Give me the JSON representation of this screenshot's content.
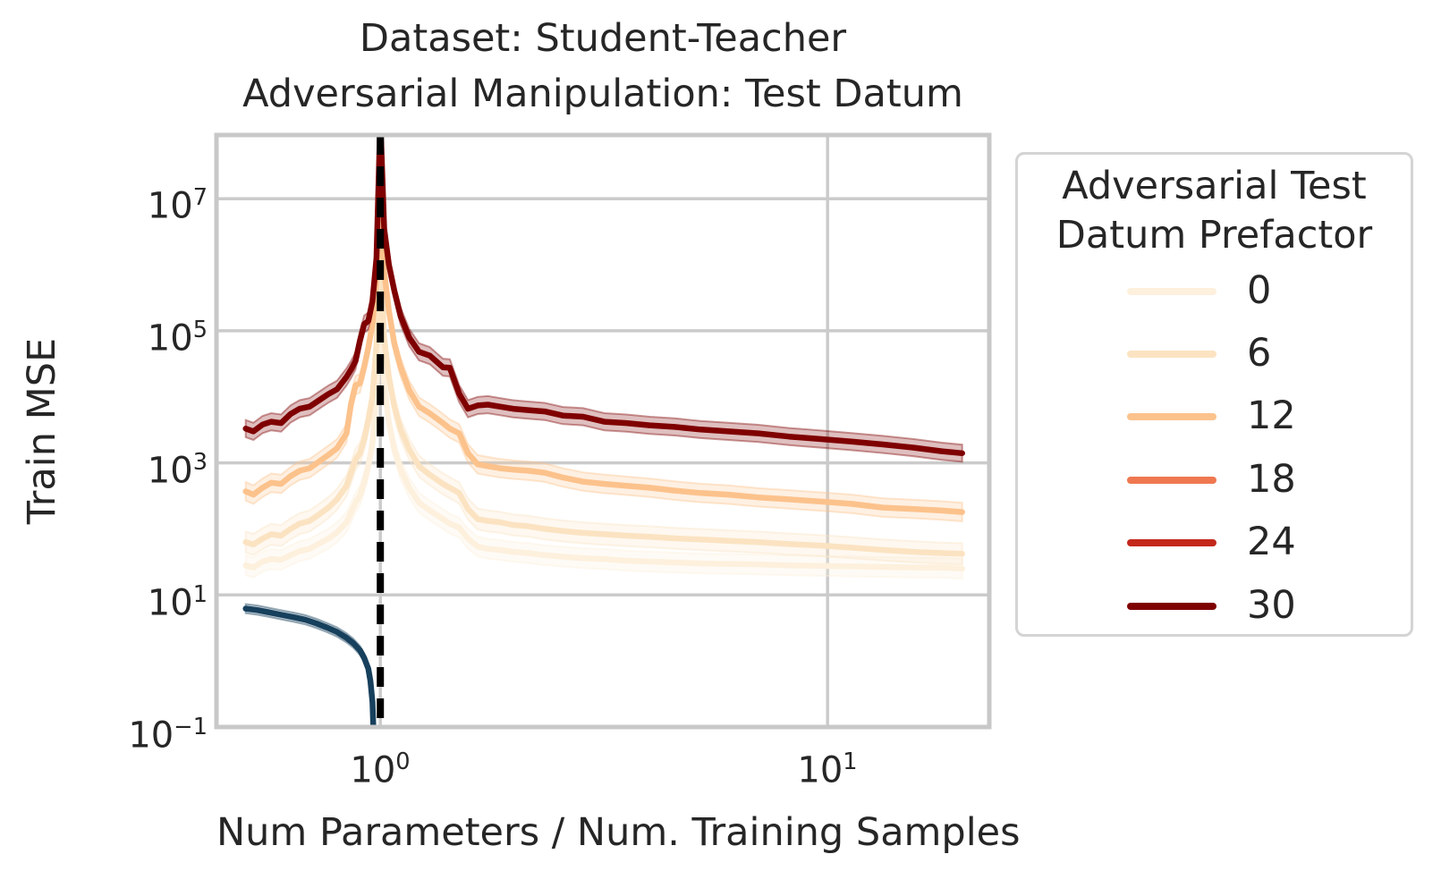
{
  "title": {
    "line1": "Dataset: Student-Teacher",
    "line2": "Adversarial Manipulation: Test Datum"
  },
  "axes": {
    "xlabel": "Num Parameters / Num. Training Samples",
    "ylabel": "Train MSE",
    "x_ticks": [
      {
        "base": "10",
        "exp": "0",
        "log10": 0
      },
      {
        "base": "10",
        "exp": "1",
        "log10": 1
      }
    ],
    "y_ticks": [
      {
        "base": "10",
        "exp": "7",
        "log10": 7
      },
      {
        "base": "10",
        "exp": "5",
        "log10": 5
      },
      {
        "base": "10",
        "exp": "3",
        "log10": 3
      },
      {
        "base": "10",
        "exp": "1",
        "log10": 1
      },
      {
        "base": "10",
        "exp": "−1",
        "log10": -1
      }
    ]
  },
  "legend": {
    "title_line1": "Adversarial Test",
    "title_line2": "Datum Prefactor"
  },
  "style_colors": {
    "grid": "#cbcbcb",
    "spine": "#c8c8c8",
    "text": "#262626",
    "threshold": "#000000"
  },
  "chart_data": {
    "type": "line",
    "title": "Dataset: Student-Teacher | Adversarial Manipulation: Test Datum",
    "xlabel": "Num Parameters / Num. Training Samples",
    "ylabel": "Train MSE",
    "x_axis": {
      "scale": "log",
      "min": 0.43,
      "max": 23.0
    },
    "y_axis": {
      "scale": "log",
      "min": 0.1,
      "max": 92000000
    },
    "grid": true,
    "legend_position": "right of axes",
    "threshold_line": {
      "x": 1.0,
      "color": "#000000",
      "style": "dashed",
      "name": "interpolation-threshold"
    },
    "series": [
      {
        "name": "prefactor-0",
        "label": "0",
        "color": "#fdf0dd",
        "band_log10": 0.15,
        "in_legend": true,
        "x": [
          0.5,
          0.52,
          0.545,
          0.57,
          0.6,
          0.63,
          0.66,
          0.695,
          0.73,
          0.765,
          0.8,
          0.84,
          0.86,
          0.88,
          0.9,
          0.92,
          0.94,
          0.96,
          0.98,
          1.0,
          1.02,
          1.045,
          1.075,
          1.11,
          1.16,
          1.22,
          1.29,
          1.38,
          1.43,
          1.5,
          1.57,
          1.65,
          1.74,
          1.85,
          1.98,
          2.14,
          2.33,
          2.56,
          2.84,
          3.17,
          3.55,
          4.0,
          4.55,
          5.2,
          6.0,
          7.0,
          8.2,
          9.6,
          11.3,
          13.3,
          15.6,
          18.0,
          20.0
        ],
        "y": [
          28,
          26,
          32,
          35,
          34,
          40,
          46,
          50,
          60,
          71,
          89,
          126,
          178,
          250,
          320,
          500,
          890,
          2000,
          12600,
          250000,
          16000,
          4000,
          1600,
          790,
          420,
          250,
          190,
          141,
          120,
          105,
          71,
          54,
          50,
          48,
          45,
          43,
          40,
          38,
          36,
          35,
          33,
          32,
          31,
          30,
          29.5,
          29,
          28,
          27.5,
          27,
          26.5,
          26,
          26,
          25
        ]
      },
      {
        "name": "prefactor-6",
        "label": "6",
        "color": "#fbe3c2",
        "band_log10": 0.16,
        "in_legend": true,
        "x": [
          0.5,
          0.52,
          0.545,
          0.57,
          0.6,
          0.63,
          0.66,
          0.695,
          0.73,
          0.765,
          0.8,
          0.84,
          0.86,
          0.88,
          0.9,
          0.92,
          0.94,
          0.96,
          0.98,
          1.0,
          1.02,
          1.045,
          1.075,
          1.11,
          1.16,
          1.22,
          1.29,
          1.38,
          1.43,
          1.5,
          1.57,
          1.65,
          1.74,
          1.85,
          1.98,
          2.14,
          2.33,
          2.56,
          2.84,
          3.17,
          3.55,
          4.0,
          4.55,
          5.2,
          6.0,
          7.0,
          8.2,
          9.6,
          11.3,
          13.3,
          15.6,
          18.0,
          20.0
        ],
        "y": [
          63,
          58,
          71,
          83,
          79,
          100,
          120,
          132,
          166,
          210,
          280,
          450,
          710,
          1120,
          1410,
          2240,
          4500,
          10000,
          63000,
          1600000,
          79000,
          20000,
          7100,
          3200,
          1600,
          890,
          660,
          480,
          420,
          350,
          200,
          141,
          132,
          126,
          115,
          110,
          100,
          93,
          87,
          83,
          79,
          76,
          72,
          69,
          66,
          63,
          59,
          56,
          52,
          48,
          45,
          43,
          42
        ]
      },
      {
        "name": "prefactor-12",
        "label": "12",
        "color": "#fcc28c",
        "band_log10": 0.14,
        "in_legend": true,
        "x": [
          0.5,
          0.52,
          0.545,
          0.57,
          0.6,
          0.63,
          0.66,
          0.695,
          0.73,
          0.765,
          0.8,
          0.84,
          0.86,
          0.88,
          0.9,
          0.92,
          0.94,
          0.96,
          0.98,
          1.0,
          1.02,
          1.045,
          1.075,
          1.11,
          1.16,
          1.22,
          1.29,
          1.38,
          1.43,
          1.5,
          1.57,
          1.65,
          1.74,
          1.85,
          1.98,
          2.14,
          2.33,
          2.56,
          2.84,
          3.17,
          3.55,
          4.0,
          4.55,
          5.2,
          6.0,
          7.0,
          8.2,
          9.6,
          11.3,
          13.3,
          15.6,
          18.0,
          20.0
        ],
        "y": [
          370,
          330,
          420,
          500,
          480,
          630,
          760,
          830,
          1050,
          1320,
          1660,
          2800,
          7900,
          15000,
          16000,
          28000,
          56000,
          126000,
          630000,
          10000000,
          790000,
          200000,
          63000,
          28000,
          12600,
          7100,
          5600,
          4000,
          3300,
          2800,
          1400,
          950,
          890,
          830,
          790,
          760,
          710,
          600,
          520,
          480,
          450,
          420,
          380,
          350,
          330,
          300,
          280,
          260,
          240,
          210,
          200,
          190,
          180
        ]
      },
      {
        "name": "prefactor-18",
        "label": "18",
        "color": "#ef7850",
        "band_log10": 0.13,
        "in_legend": true,
        "note": "curve not separately visible in plot; occluded behind prefactor-30 curve",
        "x": [],
        "y": []
      },
      {
        "name": "prefactor-24",
        "label": "24",
        "color": "#c3281b",
        "band_log10": 0.13,
        "in_legend": true,
        "note": "curve not separately visible in plot; occluded behind prefactor-30 curve",
        "x": [],
        "y": []
      },
      {
        "name": "prefactor-30",
        "label": "30",
        "color": "#7f0000",
        "band_log10": 0.13,
        "in_legend": true,
        "x": [
          0.5,
          0.52,
          0.545,
          0.57,
          0.6,
          0.63,
          0.66,
          0.695,
          0.73,
          0.765,
          0.8,
          0.84,
          0.86,
          0.88,
          0.9,
          0.92,
          0.94,
          0.96,
          0.98,
          1.0,
          1.02,
          1.045,
          1.075,
          1.11,
          1.16,
          1.22,
          1.29,
          1.38,
          1.43,
          1.5,
          1.57,
          1.65,
          1.74,
          1.85,
          1.98,
          2.14,
          2.33,
          2.56,
          2.84,
          3.17,
          3.55,
          4.0,
          4.55,
          5.2,
          6.0,
          7.0,
          8.2,
          9.6,
          11.3,
          13.3,
          15.6,
          18.0,
          20.0
        ],
        "y": [
          3300,
          3000,
          3800,
          4200,
          4000,
          5500,
          6600,
          7100,
          8900,
          11000,
          13000,
          20000,
          26000,
          35000,
          71000,
          126000,
          141000,
          282000,
          1260000,
          160000000,
          3500000,
          1000000,
          400000,
          166000,
          79000,
          48000,
          42000,
          28000,
          27500,
          11200,
          6600,
          7400,
          7600,
          7100,
          6600,
          6300,
          6000,
          5200,
          5000,
          4200,
          4000,
          3700,
          3500,
          3200,
          3000,
          2800,
          2500,
          2300,
          2100,
          1900,
          1700,
          1500,
          1400
        ]
      },
      {
        "name": "unmanipulated-baseline",
        "label": "",
        "color": "#17405d",
        "band_log10": 0.07,
        "in_legend": false,
        "x": [
          0.5,
          0.53,
          0.56,
          0.6,
          0.64,
          0.68,
          0.72,
          0.76,
          0.8,
          0.84,
          0.87,
          0.9,
          0.92,
          0.94,
          0.95,
          0.96,
          0.965,
          0.968
        ],
        "y": [
          6.2,
          5.9,
          5.5,
          5.0,
          4.6,
          4.2,
          3.7,
          3.2,
          2.75,
          2.24,
          1.86,
          1.45,
          1.12,
          0.76,
          0.5,
          0.24,
          0.089,
          0.04
        ]
      }
    ]
  }
}
